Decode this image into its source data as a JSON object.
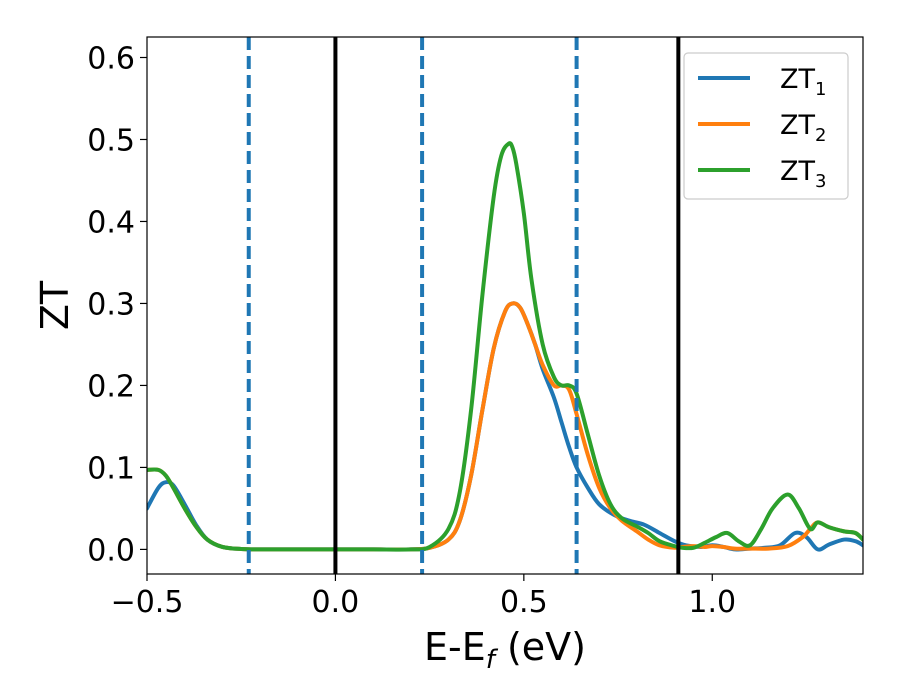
{
  "chart_data": {
    "type": "line",
    "title": "",
    "xlabel": {
      "main": "E-E",
      "sub": "f",
      "unit": " (eV)"
    },
    "ylabel": "ZT",
    "xlim": [
      -0.5,
      1.4
    ],
    "ylim": [
      -0.03,
      0.625
    ],
    "xticks": [
      -0.5,
      0.0,
      0.5,
      1.0
    ],
    "xtick_labels": [
      "−0.5",
      "0.0",
      "0.5",
      "1.0"
    ],
    "yticks": [
      0.0,
      0.1,
      0.2,
      0.3,
      0.4,
      0.5,
      0.6
    ],
    "ytick_labels": [
      "0.0",
      "0.1",
      "0.2",
      "0.3",
      "0.4",
      "0.5",
      "0.6"
    ],
    "grid": false,
    "legend_position": "top-right",
    "vlines_solid": [
      0.0,
      0.91
    ],
    "vlines_dashed": [
      -0.23,
      0.23,
      0.64
    ],
    "vline_solid_color": "#000000",
    "vline_dashed_color": "#1f77b4",
    "series": [
      {
        "name": "ZT",
        "sub": "1",
        "color": "#1f77b4",
        "x": [
          -0.5,
          -0.47,
          -0.45,
          -0.43,
          -0.4,
          -0.37,
          -0.34,
          -0.3,
          -0.25,
          -0.2,
          -0.1,
          0.0,
          0.1,
          0.2,
          0.25,
          0.3,
          0.33,
          0.36,
          0.39,
          0.42,
          0.45,
          0.47,
          0.49,
          0.51,
          0.53,
          0.55,
          0.58,
          0.6,
          0.62,
          0.64,
          0.67,
          0.7,
          0.74,
          0.78,
          0.82,
          0.86,
          0.9,
          0.93,
          0.97,
          1.0,
          1.03,
          1.06,
          1.1,
          1.14,
          1.18,
          1.22,
          1.25,
          1.28,
          1.31,
          1.35,
          1.38,
          1.4
        ],
        "y": [
          0.05,
          0.075,
          0.082,
          0.078,
          0.055,
          0.03,
          0.012,
          0.003,
          0.0005,
          0.0,
          0.0,
          0.0,
          0.0,
          0.0,
          0.002,
          0.012,
          0.035,
          0.09,
          0.17,
          0.245,
          0.29,
          0.3,
          0.295,
          0.275,
          0.25,
          0.22,
          0.185,
          0.155,
          0.125,
          0.1,
          0.075,
          0.055,
          0.042,
          0.035,
          0.03,
          0.02,
          0.01,
          0.005,
          0.003,
          0.005,
          0.003,
          0.0,
          0.001,
          0.002,
          0.005,
          0.02,
          0.015,
          0.0,
          0.006,
          0.012,
          0.01,
          0.005
        ]
      },
      {
        "name": "ZT",
        "sub": "2",
        "color": "#ff7f0e",
        "x": [
          -0.5,
          -0.47,
          -0.45,
          -0.43,
          -0.4,
          -0.37,
          -0.34,
          -0.3,
          -0.25,
          -0.2,
          -0.1,
          0.0,
          0.1,
          0.2,
          0.25,
          0.3,
          0.33,
          0.36,
          0.39,
          0.42,
          0.45,
          0.47,
          0.49,
          0.51,
          0.53,
          0.55,
          0.58,
          0.6,
          0.62,
          0.64,
          0.67,
          0.7,
          0.73,
          0.76,
          0.8,
          0.83,
          0.86,
          0.9,
          0.92,
          0.95,
          0.98,
          1.0,
          1.03,
          1.06,
          1.1,
          1.15,
          1.2,
          1.24,
          1.26,
          1.28,
          1.31,
          1.35,
          1.38,
          1.4
        ],
        "y": [
          0.097,
          0.097,
          0.09,
          0.075,
          0.05,
          0.028,
          0.012,
          0.003,
          0.0005,
          0.0,
          0.0,
          0.0,
          0.0,
          0.0,
          0.002,
          0.012,
          0.035,
          0.09,
          0.17,
          0.245,
          0.29,
          0.3,
          0.295,
          0.275,
          0.25,
          0.225,
          0.2,
          0.2,
          0.195,
          0.165,
          0.115,
          0.075,
          0.05,
          0.035,
          0.022,
          0.012,
          0.005,
          0.002,
          0.003,
          0.004,
          0.003,
          0.004,
          0.003,
          0.001,
          0.001,
          0.001,
          0.004,
          0.015,
          0.025,
          0.033,
          0.027,
          0.022,
          0.02,
          0.012
        ]
      },
      {
        "name": "ZT",
        "sub": "3",
        "color": "#2ca02c",
        "x": [
          -0.5,
          -0.47,
          -0.45,
          -0.43,
          -0.4,
          -0.37,
          -0.34,
          -0.3,
          -0.25,
          -0.2,
          -0.1,
          0.0,
          0.1,
          0.2,
          0.25,
          0.3,
          0.33,
          0.36,
          0.39,
          0.42,
          0.44,
          0.46,
          0.47,
          0.48,
          0.5,
          0.52,
          0.55,
          0.58,
          0.6,
          0.62,
          0.64,
          0.67,
          0.7,
          0.73,
          0.76,
          0.8,
          0.83,
          0.86,
          0.9,
          0.92,
          0.95,
          0.98,
          1.01,
          1.04,
          1.07,
          1.1,
          1.13,
          1.16,
          1.2,
          1.23,
          1.26,
          1.28,
          1.31,
          1.35,
          1.38,
          1.4
        ],
        "y": [
          0.097,
          0.097,
          0.09,
          0.075,
          0.05,
          0.028,
          0.012,
          0.003,
          0.0005,
          0.0,
          0.0,
          0.0,
          0.0,
          0.0,
          0.003,
          0.025,
          0.07,
          0.17,
          0.31,
          0.43,
          0.48,
          0.495,
          0.49,
          0.47,
          0.41,
          0.33,
          0.25,
          0.21,
          0.2,
          0.2,
          0.19,
          0.14,
          0.09,
          0.055,
          0.038,
          0.028,
          0.02,
          0.01,
          0.004,
          0.002,
          0.002,
          0.008,
          0.015,
          0.02,
          0.01,
          0.005,
          0.025,
          0.05,
          0.067,
          0.05,
          0.025,
          0.033,
          0.027,
          0.022,
          0.02,
          0.012
        ]
      }
    ]
  }
}
